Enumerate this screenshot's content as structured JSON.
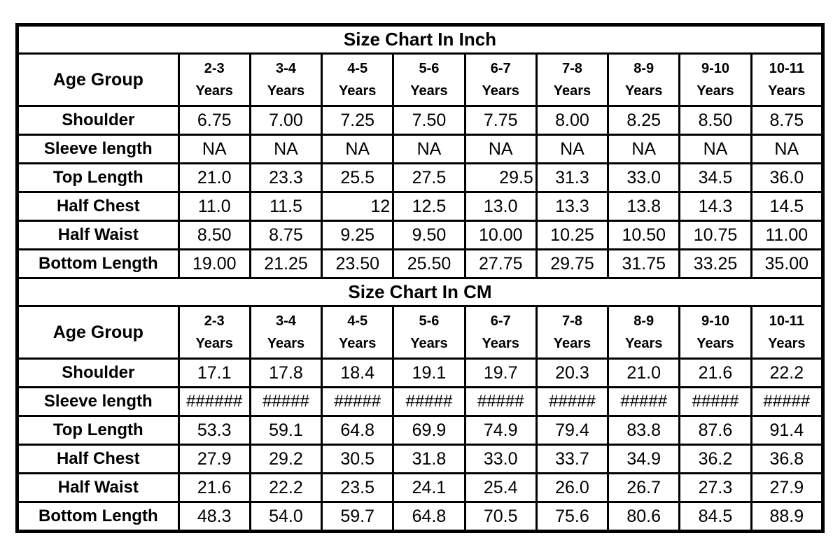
{
  "colors": {
    "border": "#000000",
    "text": "#000000",
    "background": "#ffffff"
  },
  "table": {
    "sections": [
      {
        "title": "Size Chart In Inch",
        "corner_label": "Age Group",
        "age_groups": [
          {
            "range": "2-3",
            "unit": "Years"
          },
          {
            "range": "3-4",
            "unit": "Years"
          },
          {
            "range": "4-5",
            "unit": "Years"
          },
          {
            "range": "5-6",
            "unit": "Years"
          },
          {
            "range": "6-7",
            "unit": "Years"
          },
          {
            "range": "7-8",
            "unit": "Years"
          },
          {
            "range": "8-9",
            "unit": "Years"
          },
          {
            "range": "9-10",
            "unit": "Years"
          },
          {
            "range": "10-11",
            "unit": "Years"
          }
        ],
        "rows": [
          {
            "label": "Shoulder",
            "values": [
              "6.75",
              "7.00",
              "7.25",
              "7.50",
              "7.75",
              "8.00",
              "8.25",
              "8.50",
              "8.75"
            ]
          },
          {
            "label": "Sleeve length",
            "values": [
              "NA",
              "NA",
              "NA",
              "NA",
              "NA",
              "NA",
              "NA",
              "NA",
              "NA"
            ]
          },
          {
            "label": "Top Length",
            "values": [
              "21.0",
              "23.3",
              "25.5",
              "27.5",
              "29.5",
              "31.3",
              "33.0",
              "34.5",
              "36.0"
            ],
            "align_right": [
              4
            ]
          },
          {
            "label": "Half Chest",
            "values": [
              "11.0",
              "11.5",
              "12",
              "12.5",
              "13.0",
              "13.3",
              "13.8",
              "14.3",
              "14.5"
            ],
            "align_right": [
              2
            ]
          },
          {
            "label": "Half Waist",
            "values": [
              "8.50",
              "8.75",
              "9.25",
              "9.50",
              "10.00",
              "10.25",
              "10.50",
              "10.75",
              "11.00"
            ]
          },
          {
            "label": "Bottom Length",
            "values": [
              "19.00",
              "21.25",
              "23.50",
              "25.50",
              "27.75",
              "29.75",
              "31.75",
              "33.25",
              "35.00"
            ]
          }
        ]
      },
      {
        "title": "Size Chart In CM",
        "corner_label": "Age Group",
        "age_groups": [
          {
            "range": "2-3",
            "unit": "Years"
          },
          {
            "range": "3-4",
            "unit": "Years"
          },
          {
            "range": "4-5",
            "unit": "Years"
          },
          {
            "range": "5-6",
            "unit": "Years"
          },
          {
            "range": "6-7",
            "unit": "Years"
          },
          {
            "range": "7-8",
            "unit": "Years"
          },
          {
            "range": "8-9",
            "unit": "Years"
          },
          {
            "range": "9-10",
            "unit": "Years"
          },
          {
            "range": "10-11",
            "unit": "Years"
          }
        ],
        "rows": [
          {
            "label": "Shoulder",
            "values": [
              "17.1",
              "17.8",
              "18.4",
              "19.1",
              "19.7",
              "20.3",
              "21.0",
              "21.6",
              "22.2"
            ]
          },
          {
            "label": "Sleeve length",
            "values": [
              "######",
              "#####",
              "#####",
              "#####",
              "#####",
              "#####",
              "#####",
              "#####",
              "#####"
            ],
            "hash_row": true
          },
          {
            "label": "Top Length",
            "values": [
              "53.3",
              "59.1",
              "64.8",
              "69.9",
              "74.9",
              "79.4",
              "83.8",
              "87.6",
              "91.4"
            ]
          },
          {
            "label": "Half Chest",
            "values": [
              "27.9",
              "29.2",
              "30.5",
              "31.8",
              "33.0",
              "33.7",
              "34.9",
              "36.2",
              "36.8"
            ]
          },
          {
            "label": "Half Waist",
            "values": [
              "21.6",
              "22.2",
              "23.5",
              "24.1",
              "25.4",
              "26.0",
              "26.7",
              "27.3",
              "27.9"
            ]
          },
          {
            "label": "Bottom Length",
            "values": [
              "48.3",
              "54.0",
              "59.7",
              "64.8",
              "70.5",
              "75.6",
              "80.6",
              "84.5",
              "88.9"
            ]
          }
        ]
      }
    ]
  }
}
